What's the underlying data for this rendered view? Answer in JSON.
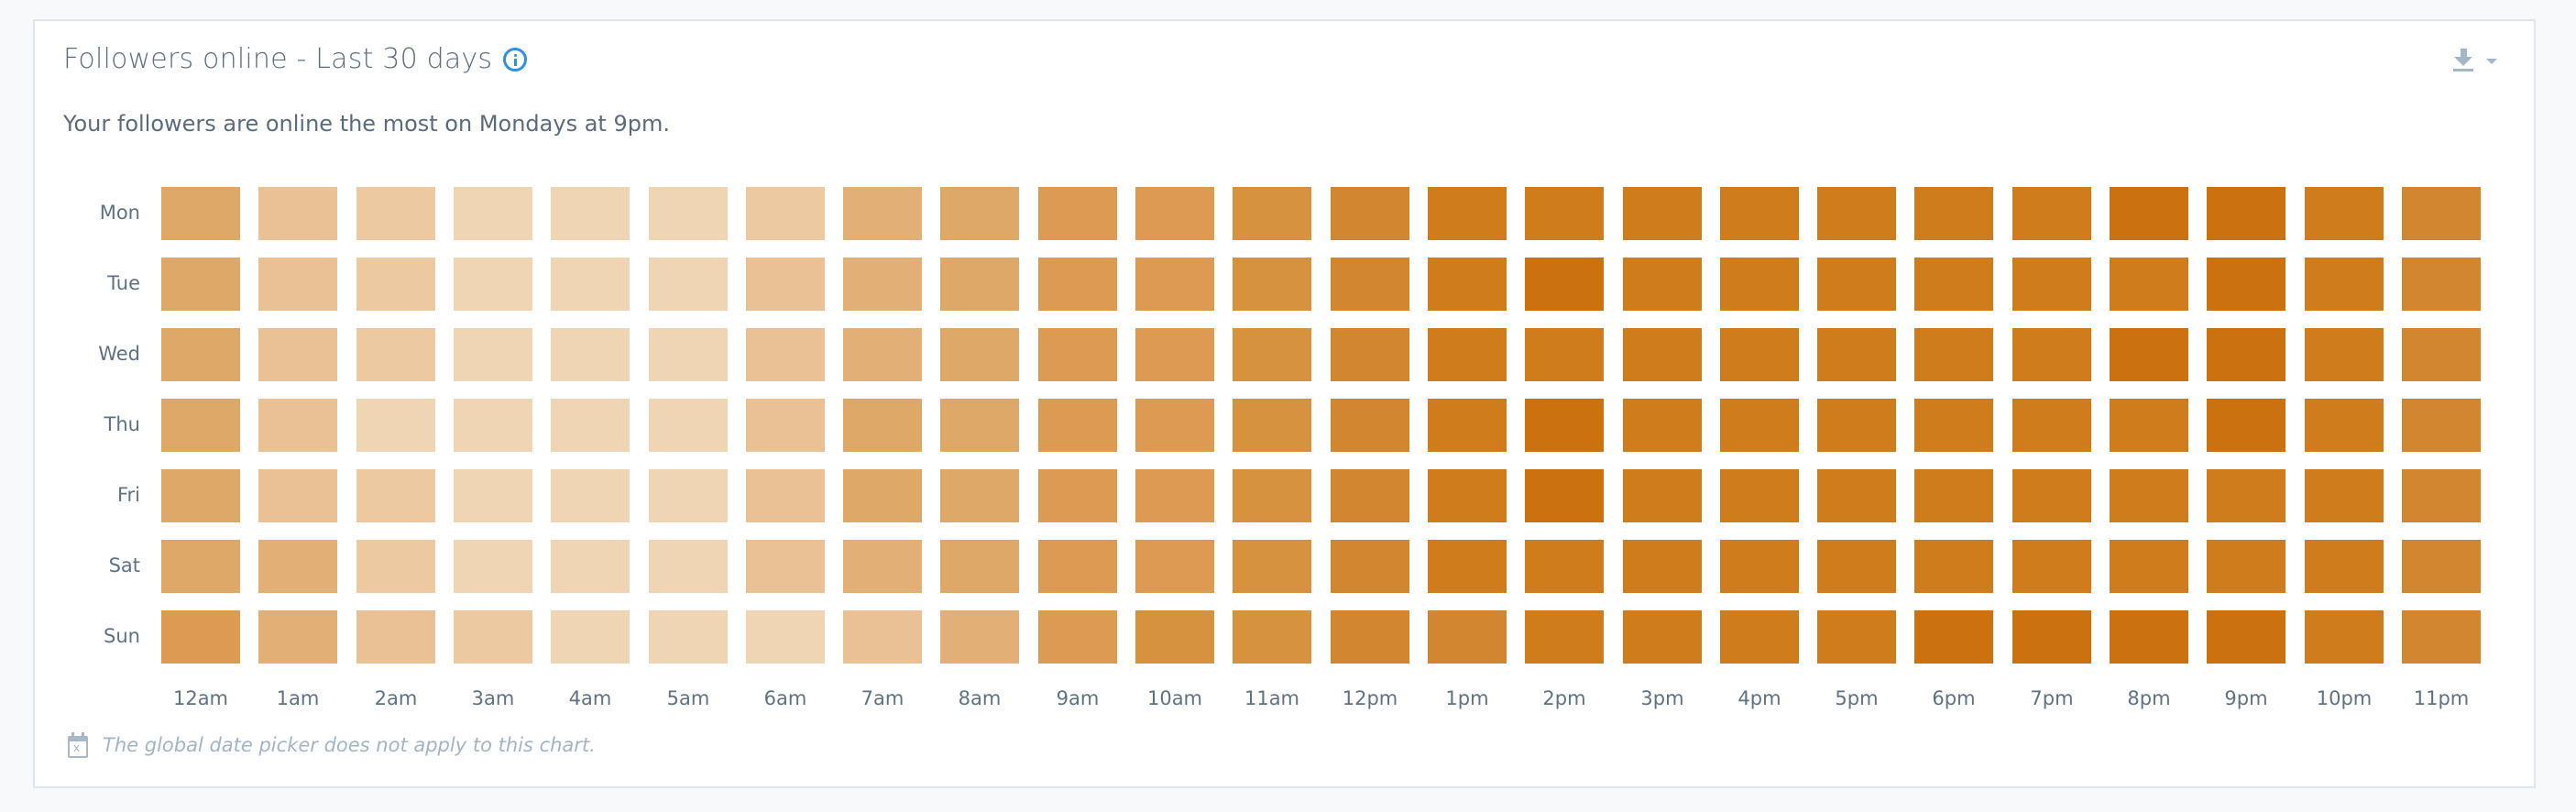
{
  "card": {
    "title": "Followers online - Last 30 days",
    "info_icon": "info-circle-icon",
    "export_icon": "download-icon",
    "export_caret_icon": "caret-down-icon",
    "subtitle": "Your followers are online the most on Mondays at 9pm.",
    "footnote_icon": "calendar-x-icon",
    "footnote": "The global date picker does not apply to this chart."
  },
  "colors": {
    "levels": [
      "#efd5b3",
      "#ecc9a1",
      "#e9c194",
      "#e2b077",
      "#dea869",
      "#dc9a52",
      "#d79240",
      "#d38630",
      "#cf7c1c",
      "#cc7110"
    ],
    "title": "#5d6d7e",
    "info": "#2d8fe6",
    "axis_label": "#5f7284",
    "footnote": "#a3b4c4"
  },
  "chart_data": {
    "type": "heatmap",
    "title": "Followers online - Last 30 days",
    "subtitle": "Your followers are online the most on Mondays at 9pm.",
    "xlabel": "",
    "ylabel": "",
    "categories": [
      "12am",
      "1am",
      "2am",
      "3am",
      "4am",
      "5am",
      "6am",
      "7am",
      "8am",
      "9am",
      "10am",
      "11am",
      "12pm",
      "1pm",
      "2pm",
      "3pm",
      "4pm",
      "5pm",
      "6pm",
      "7pm",
      "8pm",
      "9pm",
      "10pm",
      "11pm"
    ],
    "rows": [
      "Mon",
      "Tue",
      "Wed",
      "Thu",
      "Fri",
      "Sat",
      "Sun"
    ],
    "value_scale": "relative intensity level 1 (lightest) to 10 (darkest)",
    "values": [
      [
        5,
        3,
        2,
        1,
        1,
        1,
        2,
        4,
        5,
        6,
        6,
        7,
        8,
        9,
        9,
        9,
        9,
        9,
        9,
        9,
        10,
        10,
        9,
        8
      ],
      [
        5,
        3,
        2,
        1,
        1,
        1,
        3,
        4,
        5,
        6,
        6,
        7,
        8,
        9,
        10,
        9,
        9,
        9,
        9,
        9,
        9,
        10,
        9,
        8
      ],
      [
        5,
        3,
        2,
        1,
        1,
        1,
        3,
        4,
        5,
        6,
        6,
        7,
        8,
        9,
        9,
        9,
        9,
        9,
        9,
        9,
        10,
        10,
        9,
        8
      ],
      [
        5,
        3,
        1,
        1,
        1,
        1,
        3,
        5,
        5,
        6,
        6,
        7,
        8,
        9,
        10,
        9,
        9,
        9,
        9,
        9,
        9,
        10,
        9,
        8
      ],
      [
        5,
        3,
        2,
        1,
        1,
        1,
        3,
        5,
        5,
        6,
        6,
        7,
        8,
        9,
        10,
        9,
        9,
        9,
        9,
        9,
        9,
        9,
        9,
        8
      ],
      [
        5,
        4,
        2,
        1,
        1,
        1,
        3,
        4,
        5,
        6,
        6,
        7,
        8,
        9,
        9,
        9,
        9,
        9,
        9,
        9,
        9,
        9,
        9,
        8
      ],
      [
        6,
        4,
        3,
        2,
        1,
        1,
        1,
        3,
        4,
        6,
        7,
        7,
        8,
        8,
        9,
        9,
        9,
        9,
        10,
        10,
        10,
        10,
        9,
        8
      ]
    ],
    "peak": {
      "day": "Mon",
      "hour": "9pm"
    },
    "legend": "none"
  }
}
